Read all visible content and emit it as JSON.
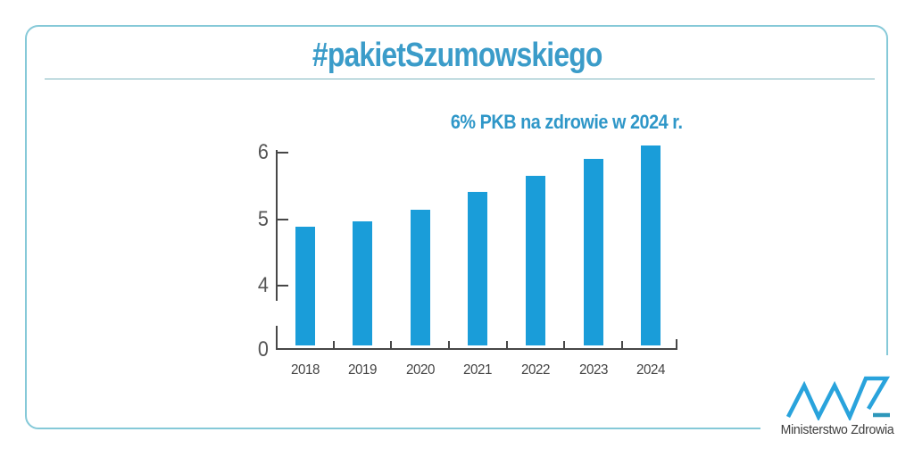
{
  "page": {
    "title": "#pakietSzumowskiego",
    "subtitle": "6% PKB na zdrowie w 2024 r."
  },
  "chart_data": {
    "type": "bar",
    "title": "#pakietSzumowskiego",
    "annotation": "6% PKB na zdrowie w 2024 r.",
    "categories": [
      "2018",
      "2019",
      "2020",
      "2021",
      "2022",
      "2023",
      "2024"
    ],
    "values": [
      4.78,
      4.86,
      5.03,
      5.3,
      5.55,
      5.8,
      6.0
    ],
    "unit": "% PKB",
    "xlabel": "",
    "ylabel": "",
    "y_ticks": [
      0,
      4,
      5,
      6
    ],
    "axis_style": "broken y-axis (gap between 0 and 4)",
    "grid": false,
    "legend": "none",
    "bar_color": "#1a9dd9",
    "axis_color": "#474747"
  },
  "logo": {
    "text": "Ministerstwo Zdrowia",
    "mark": "mz-zigzag-logo",
    "zigzag_color": "#29a3dc",
    "dash_color": "#2d97ba"
  },
  "colors": {
    "title_blue": "#3b9cc9",
    "subtitle_blue": "#2f97c8",
    "frame_teal": "#85c9d8",
    "underline_teal": "#7db6bf",
    "bar_blue": "#1a9dd9",
    "axis_gray": "#474747",
    "label_gray": "#454545"
  }
}
